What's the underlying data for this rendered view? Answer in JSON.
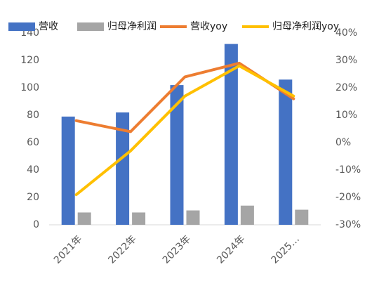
{
  "chart_data": {
    "type": "bar-line",
    "categories": [
      "2021年",
      "2022年",
      "2023年",
      "2024年",
      "2025…"
    ],
    "series": [
      {
        "name": "营收",
        "type": "bar",
        "color": "#4472c4",
        "values": [
          79,
          82,
          102,
          132,
          106
        ]
      },
      {
        "name": "归母净利润",
        "type": "bar",
        "color": "#a5a5a5",
        "values": [
          9,
          9,
          10.5,
          14,
          11
        ]
      },
      {
        "name": "营收yoy",
        "type": "line",
        "axis": "y2",
        "color": "#ed7d31",
        "values": [
          8,
          4,
          24,
          29,
          16
        ]
      },
      {
        "name": "归母净利润yoy",
        "type": "line",
        "axis": "y2",
        "color": "#ffc000",
        "values": [
          -19,
          -3,
          17,
          28,
          17
        ]
      }
    ],
    "ylim": [
      0,
      140
    ],
    "yticks": [
      0,
      20,
      40,
      60,
      80,
      100,
      120,
      140
    ],
    "y2lim": [
      -30,
      40
    ],
    "y2ticks": [
      {
        "value": -30,
        "label": "-30%"
      },
      {
        "value": -20,
        "label": "-20%"
      },
      {
        "value": -10,
        "label": "-10%"
      },
      {
        "value": 0,
        "label": "0%"
      },
      {
        "value": 10,
        "label": "10%"
      },
      {
        "value": 20,
        "label": "20%"
      },
      {
        "value": 30,
        "label": "30%"
      },
      {
        "value": 40,
        "label": "40%"
      }
    ],
    "legend": "top"
  }
}
